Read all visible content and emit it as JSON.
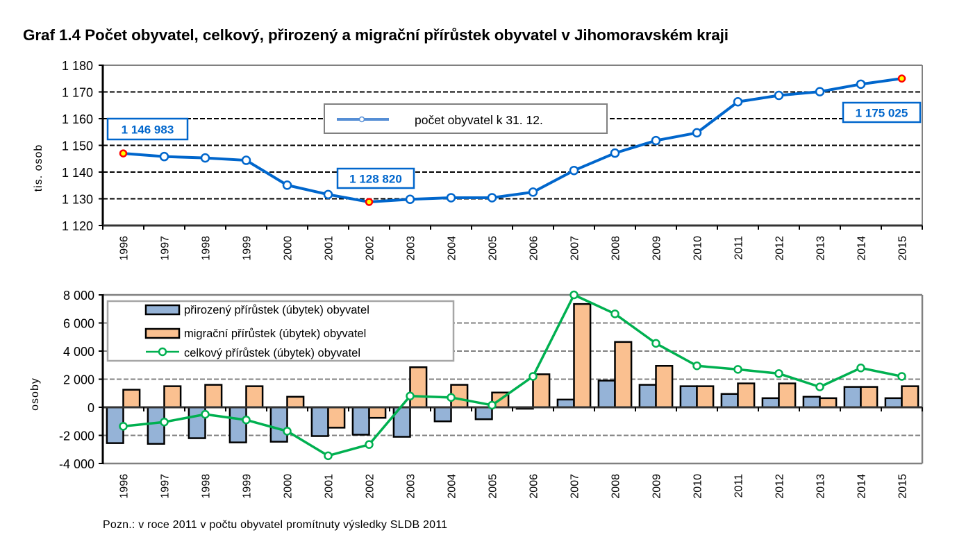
{
  "title": "Graf 1.4 Počet obyvatel, celkový, přirozený a migrační přírůstek obyvatel v Jihomoravském kraji",
  "note": "Pozn.: v roce 2011 v počtu obyvatel promítnuty výsledky SLDB 2011",
  "colors": {
    "population_line": "#0066CC",
    "legend_line": "#558ED5",
    "natural_bar": "#95B3D7",
    "migration_bar": "#FAC090",
    "total_line": "#00B050",
    "highlight_fill": "#FFFF00",
    "highlight_stroke": "#FF0000",
    "grid_top": "#000000",
    "grid_bottom": "#808080"
  },
  "chart_data": [
    {
      "type": "line",
      "title": "",
      "xlabel": "",
      "ylabel": "tis. osob",
      "ylim": [
        1120,
        1180
      ],
      "yticks": [
        1120,
        1130,
        1140,
        1150,
        1160,
        1170,
        1180
      ],
      "ytick_labels": [
        "1 120",
        "1 130",
        "1 140",
        "1 150",
        "1 160",
        "1 170",
        "1 180"
      ],
      "grid": true,
      "legend_position": "top-center",
      "categories": [
        "1996",
        "1997",
        "1998",
        "1999",
        "2000",
        "2001",
        "2002",
        "2003",
        "2004",
        "2005",
        "2006",
        "2007",
        "2008",
        "2009",
        "2010",
        "2011",
        "2012",
        "2013",
        "2014",
        "2015"
      ],
      "series": [
        {
          "name": "počet obyvatel k 31. 12.",
          "values": [
            1146.983,
            1145.8,
            1145.3,
            1144.4,
            1135.1,
            1131.6,
            1128.82,
            1129.8,
            1130.4,
            1130.4,
            1132.5,
            1140.6,
            1147.1,
            1151.8,
            1154.7,
            1166.3,
            1168.7,
            1170.1,
            1172.9,
            1175.025
          ]
        }
      ],
      "annotations": [
        {
          "category": "1996",
          "text": "1 146 983"
        },
        {
          "category": "2002",
          "text": "1 128 820"
        },
        {
          "category": "2015",
          "text": "1 175 025"
        }
      ]
    },
    {
      "type": "bar",
      "title": "",
      "xlabel": "",
      "ylabel": "osoby",
      "ylim": [
        -4000,
        8000
      ],
      "yticks": [
        -4000,
        -2000,
        0,
        2000,
        4000,
        6000,
        8000
      ],
      "ytick_labels": [
        "-4 000",
        "-2 000",
        "0",
        "2 000",
        "4 000",
        "6 000",
        "8 000"
      ],
      "grid": true,
      "legend_position": "top-left",
      "categories": [
        "1996",
        "1997",
        "1998",
        "1999",
        "2000",
        "2001",
        "2002",
        "2003",
        "2004",
        "2005",
        "2006",
        "2007",
        "2008",
        "2009",
        "2010",
        "2011",
        "2012",
        "2013",
        "2014",
        "2015"
      ],
      "series": [
        {
          "name": "přirozený přírůstek (úbytek) obyvatel",
          "kind": "bar",
          "values": [
            -2550,
            -2600,
            -2200,
            -2500,
            -2450,
            -2050,
            -1950,
            -2100,
            -1000,
            -850,
            -100,
            550,
            1900,
            1600,
            1500,
            950,
            650,
            750,
            1450,
            650
          ]
        },
        {
          "name": "migrační přírůstek (úbytek) obyvatel",
          "kind": "bar",
          "values": [
            1250,
            1500,
            1600,
            1500,
            750,
            -1450,
            -750,
            2850,
            1600,
            1050,
            2350,
            7350,
            4650,
            2950,
            1500,
            1700,
            1700,
            650,
            1450,
            1500
          ]
        },
        {
          "name": "celkový přírůstek (úbytek) obyvatel",
          "kind": "line",
          "values": [
            -1350,
            -1050,
            -500,
            -900,
            -1700,
            -3450,
            -2650,
            800,
            700,
            150,
            2200,
            8000,
            6650,
            4550,
            2950,
            2700,
            2400,
            1450,
            2800,
            2200
          ]
        }
      ]
    }
  ]
}
